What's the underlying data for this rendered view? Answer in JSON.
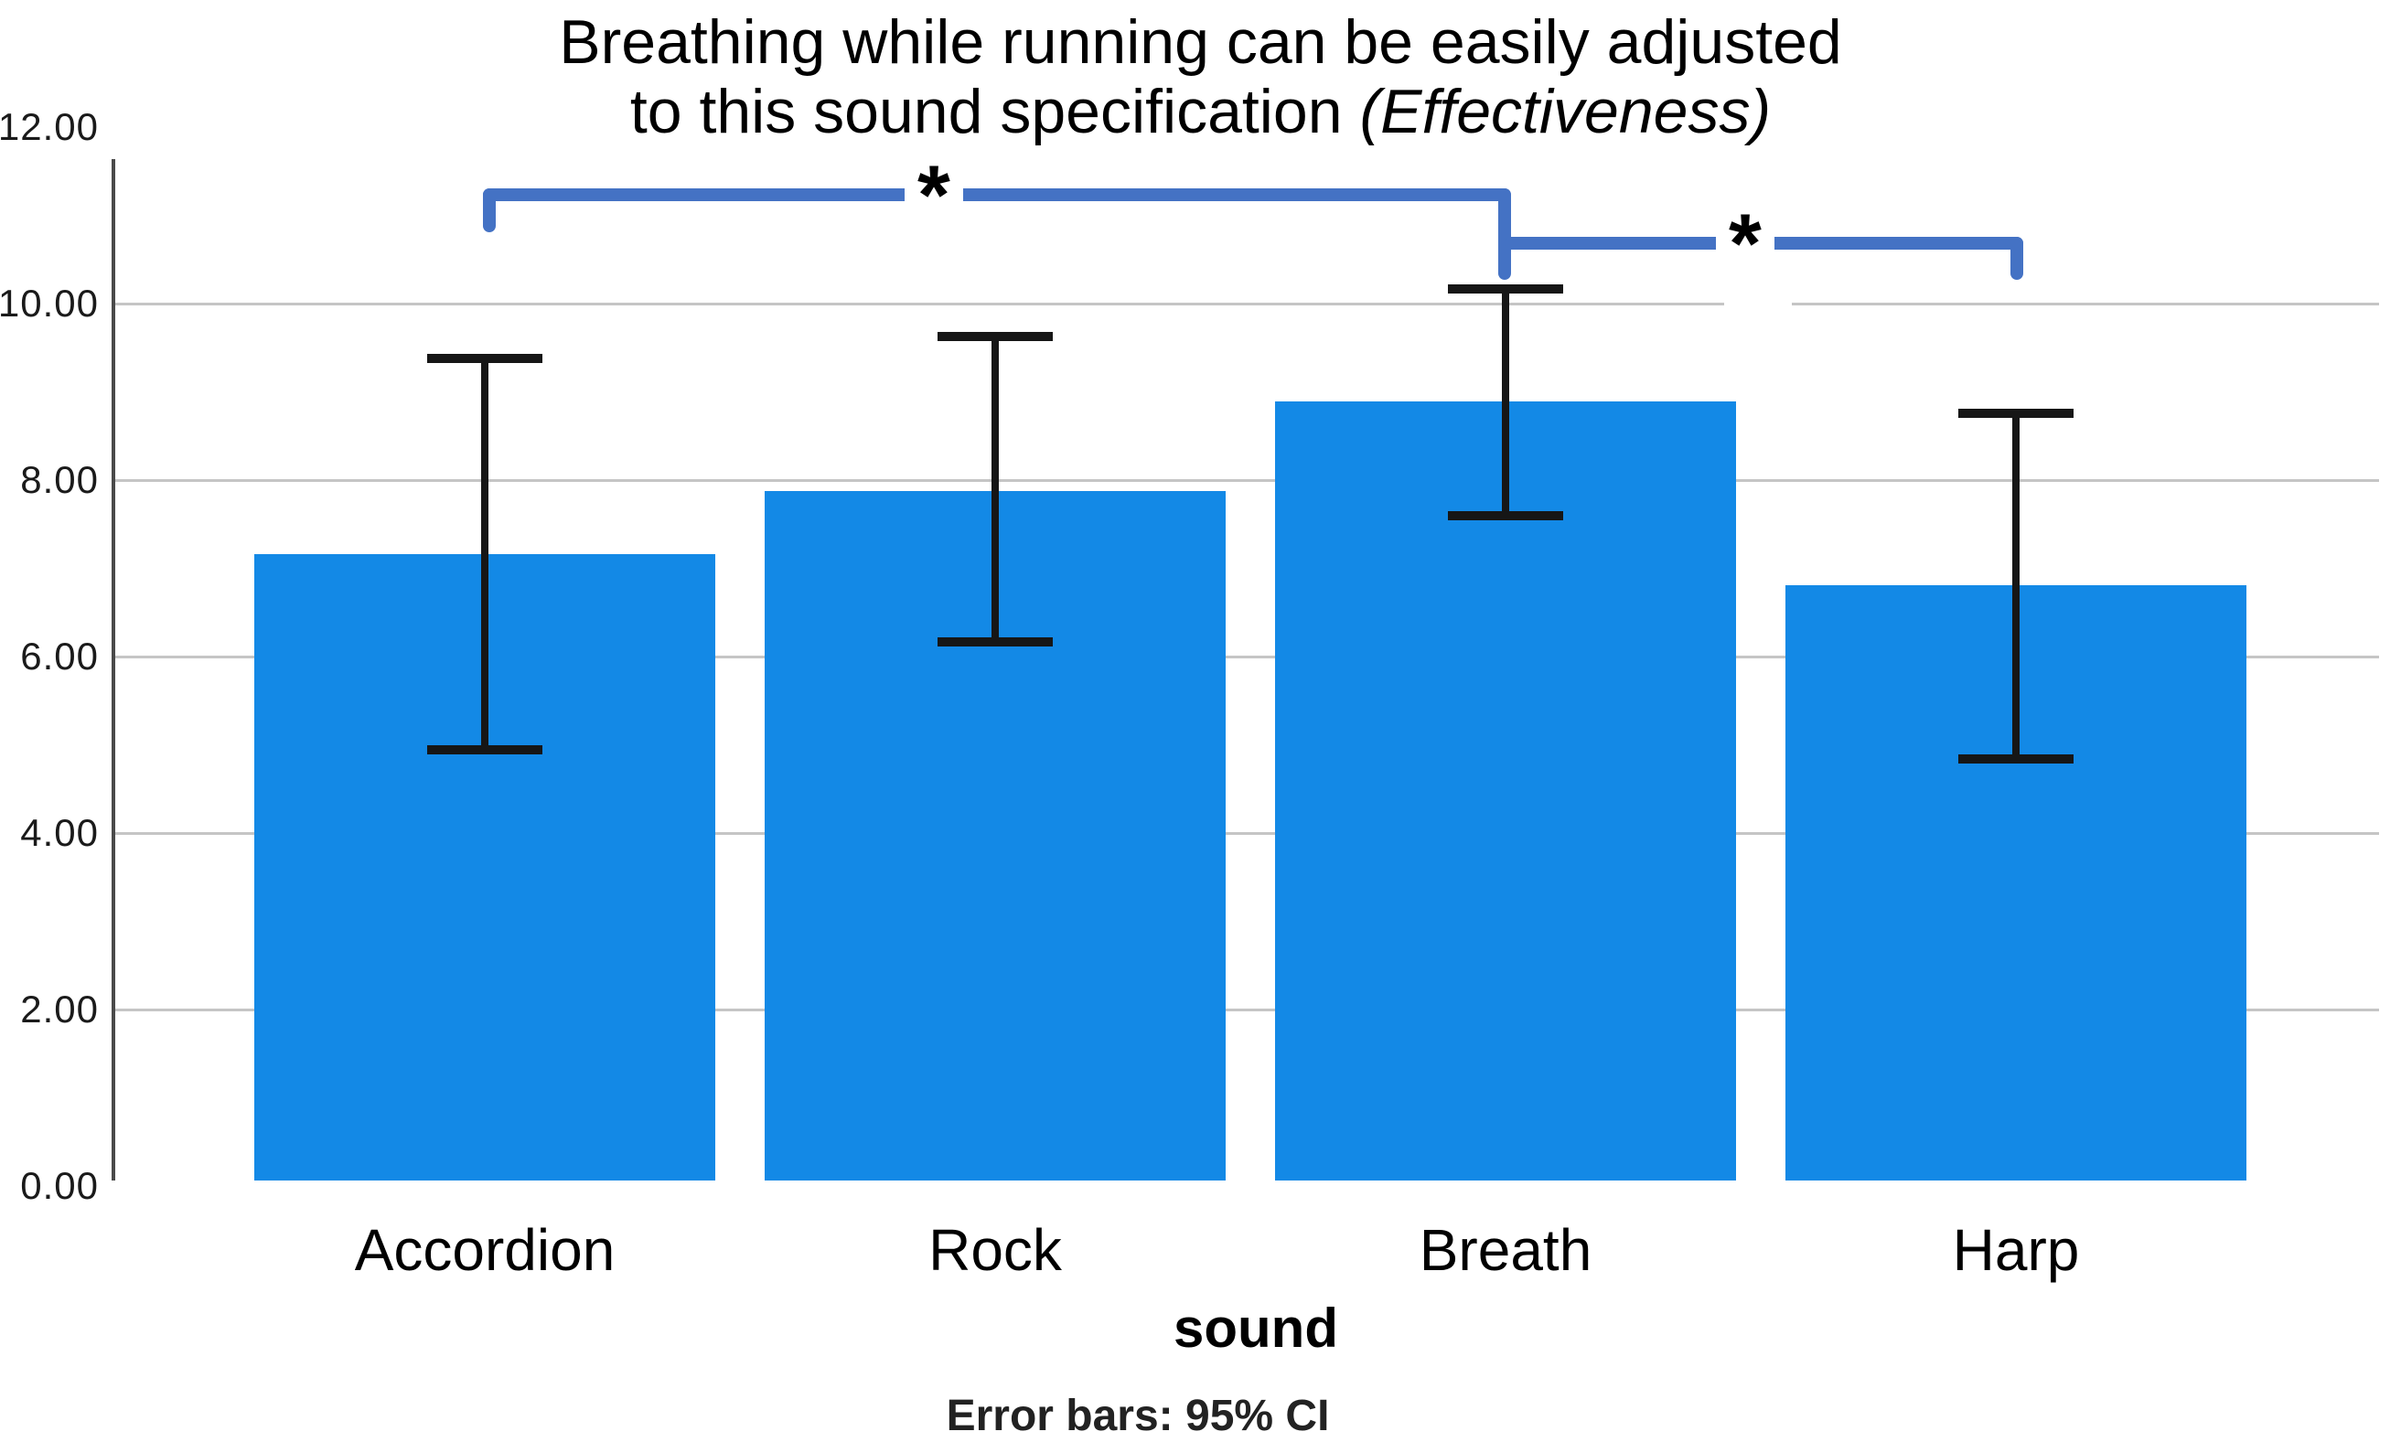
{
  "title": {
    "line1": "Breathing while running can be easily adjusted",
    "line2_normal": "to this sound specification ",
    "line2_italic": "(Effectiveness)"
  },
  "chart_data": {
    "type": "bar",
    "title": "Breathing while running can be easily adjusted to this sound specification (Effectiveness)",
    "categories": [
      "Accordion",
      "Rock",
      "Breath",
      "Harp"
    ],
    "values": [
      7.16,
      7.88,
      8.89,
      6.81
    ],
    "error_low": [
      4.94,
      6.17,
      7.6,
      4.84
    ],
    "error_high": [
      9.38,
      9.63,
      10.17,
      8.76
    ],
    "error_bar_type": "95% CI",
    "xlabel": "sound",
    "ylabel": "",
    "ylim": [
      0,
      12
    ],
    "ytick_step": 2,
    "ytick_labels": [
      "0.00",
      "2.00",
      "4.00",
      "6.00",
      "8.00",
      "10.00",
      "12.00"
    ],
    "grid": true,
    "legend": false,
    "footnote": "Error bars: 95% CI",
    "significance_brackets": [
      {
        "between": [
          "Accordion",
          "Breath"
        ],
        "label": "*"
      },
      {
        "between": [
          "Breath",
          "Harp"
        ],
        "label": "*"
      }
    ]
  },
  "colors": {
    "bar_fill": "#1389e6",
    "bracket_blue": "#4472c4",
    "gridline_gray": "#c5c5c5",
    "error_bar_black": "#161616",
    "axis_black": "#000000"
  }
}
